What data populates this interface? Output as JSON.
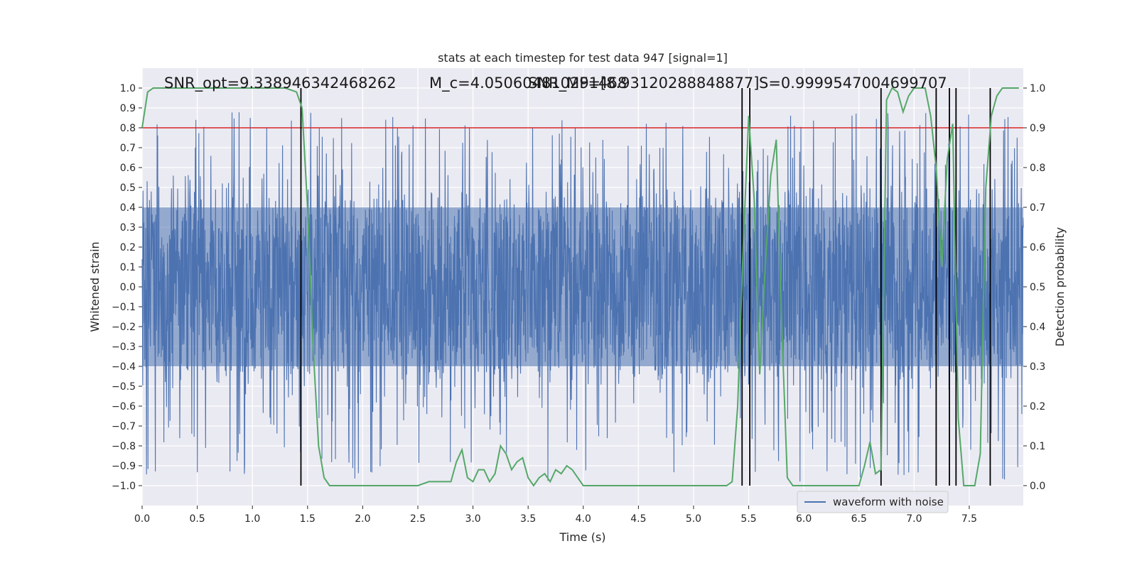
{
  "chart_data": {
    "type": "line",
    "title": "stats at each timestep for test data 947 [signal=1]",
    "xlabel": "Time (s)",
    "ylabel": "Whitened strain",
    "y2label": "Detection probability",
    "xlim": [
      0.0,
      7.99
    ],
    "ylim": [
      -1.1,
      1.1
    ],
    "y2lim": [
      -0.05,
      1.05
    ],
    "x_ticks": [
      0.0,
      0.5,
      1.0,
      1.5,
      2.0,
      2.5,
      3.0,
      3.5,
      4.0,
      4.5,
      5.0,
      5.5,
      6.0,
      6.5,
      7.0,
      7.5
    ],
    "x_tick_labels": [
      "0.0",
      "0.5",
      "1.0",
      "1.5",
      "2.0",
      "2.5",
      "3.0",
      "3.5",
      "4.0",
      "4.5",
      "5.0",
      "5.5",
      "6.0",
      "6.5",
      "7.0",
      "7.5"
    ],
    "y_ticks": [
      1.0,
      0.9,
      0.8,
      0.7,
      0.6,
      0.5,
      0.4,
      0.3,
      0.2,
      0.1,
      0.0,
      -0.1,
      -0.2,
      -0.3,
      -0.4,
      -0.5,
      -0.6,
      -0.7,
      -0.8,
      -0.9,
      -1.0
    ],
    "y_tick_labels": [
      "1.0",
      "0.9",
      "0.8",
      "0.7",
      "0.6",
      "0.5",
      "0.4",
      "0.3",
      "0.2",
      "0.1",
      "0.0",
      "−0.1",
      "−0.2",
      "−0.3",
      "−0.4",
      "−0.5",
      "−0.6",
      "−0.7",
      "−0.8",
      "−0.9",
      "−1.0"
    ],
    "y2_ticks": [
      1.0,
      0.9,
      0.8,
      0.7,
      0.6,
      0.5,
      0.4,
      0.3,
      0.2,
      0.1,
      0.0
    ],
    "y2_tick_labels": [
      "1.0",
      "0.9",
      "0.8",
      "0.7",
      "0.6",
      "0.5",
      "0.4",
      "0.3",
      "0.2",
      "0.1",
      "0.0"
    ],
    "grid": true,
    "legend": {
      "placement": "lower-right",
      "entries": [
        "waveform with noise"
      ]
    },
    "annotations": [
      "SNR_opt=9.338946342468262",
      "M_c=4.050604810291468",
      "SNR_MF=[8.93120288848877]",
      "S=0.9999547004699707"
    ],
    "threshold_line": {
      "y2": 0.9,
      "color": "#d62728"
    },
    "vertical_markers_x": [
      1.44,
      5.44,
      5.51,
      6.7,
      7.2,
      7.32,
      7.38,
      7.69
    ],
    "noise_waveform": {
      "name": "waveform with noise",
      "color": "#4c72b0",
      "core_band": [
        -0.4,
        0.4
      ],
      "typical_peak_max": 0.88,
      "typical_peak_min": -0.98
    },
    "detection_probability": {
      "color": "#55a868",
      "x": [
        0.0,
        0.05,
        0.1,
        0.15,
        0.2,
        0.3,
        0.4,
        0.5,
        0.6,
        0.7,
        0.8,
        0.9,
        1.0,
        1.1,
        1.2,
        1.3,
        1.4,
        1.45,
        1.5,
        1.55,
        1.6,
        1.65,
        1.7,
        1.8,
        1.9,
        2.0,
        2.1,
        2.2,
        2.3,
        2.4,
        2.5,
        2.6,
        2.7,
        2.8,
        2.85,
        2.9,
        2.95,
        3.0,
        3.05,
        3.1,
        3.15,
        3.2,
        3.25,
        3.3,
        3.35,
        3.4,
        3.45,
        3.5,
        3.55,
        3.6,
        3.65,
        3.7,
        3.75,
        3.8,
        3.85,
        3.9,
        3.95,
        4.0,
        4.05,
        4.1,
        4.15,
        4.2,
        4.3,
        4.4,
        4.5,
        4.6,
        4.7,
        4.8,
        4.9,
        5.0,
        5.1,
        5.2,
        5.3,
        5.35,
        5.4,
        5.45,
        5.5,
        5.55,
        5.6,
        5.65,
        5.7,
        5.75,
        5.8,
        5.85,
        5.9,
        6.0,
        6.1,
        6.2,
        6.3,
        6.4,
        6.5,
        6.55,
        6.6,
        6.65,
        6.7,
        6.75,
        6.8,
        6.85,
        6.9,
        6.95,
        7.0,
        7.05,
        7.1,
        7.15,
        7.2,
        7.25,
        7.3,
        7.35,
        7.4,
        7.45,
        7.5,
        7.55,
        7.6,
        7.65,
        7.7,
        7.75,
        7.8,
        7.85,
        7.9,
        7.95
      ],
      "y": [
        0.9,
        0.99,
        1.0,
        1.0,
        1.0,
        1.0,
        1.0,
        1.0,
        1.0,
        1.0,
        1.0,
        1.0,
        1.0,
        1.0,
        1.0,
        1.0,
        0.99,
        0.95,
        0.7,
        0.35,
        0.1,
        0.02,
        0.0,
        0.0,
        0.0,
        0.0,
        0.0,
        0.0,
        0.0,
        0.0,
        0.0,
        0.01,
        0.01,
        0.01,
        0.06,
        0.09,
        0.02,
        0.01,
        0.04,
        0.04,
        0.01,
        0.03,
        0.1,
        0.08,
        0.04,
        0.06,
        0.07,
        0.02,
        0.0,
        0.02,
        0.03,
        0.01,
        0.04,
        0.03,
        0.05,
        0.04,
        0.02,
        0.0,
        0.0,
        0.0,
        0.0,
        0.0,
        0.0,
        0.0,
        0.0,
        0.0,
        0.0,
        0.0,
        0.0,
        0.0,
        0.0,
        0.0,
        0.0,
        0.01,
        0.2,
        0.6,
        0.93,
        0.72,
        0.28,
        0.55,
        0.78,
        0.87,
        0.4,
        0.02,
        0.0,
        0.0,
        0.0,
        0.0,
        0.0,
        0.0,
        0.0,
        0.05,
        0.11,
        0.03,
        0.04,
        0.97,
        1.0,
        0.99,
        0.94,
        0.98,
        1.0,
        1.0,
        1.0,
        0.93,
        0.8,
        0.55,
        0.82,
        0.91,
        0.17,
        0.0,
        0.0,
        0.0,
        0.08,
        0.75,
        0.93,
        0.98,
        1.0,
        1.0,
        1.0,
        1.0
      ]
    }
  }
}
